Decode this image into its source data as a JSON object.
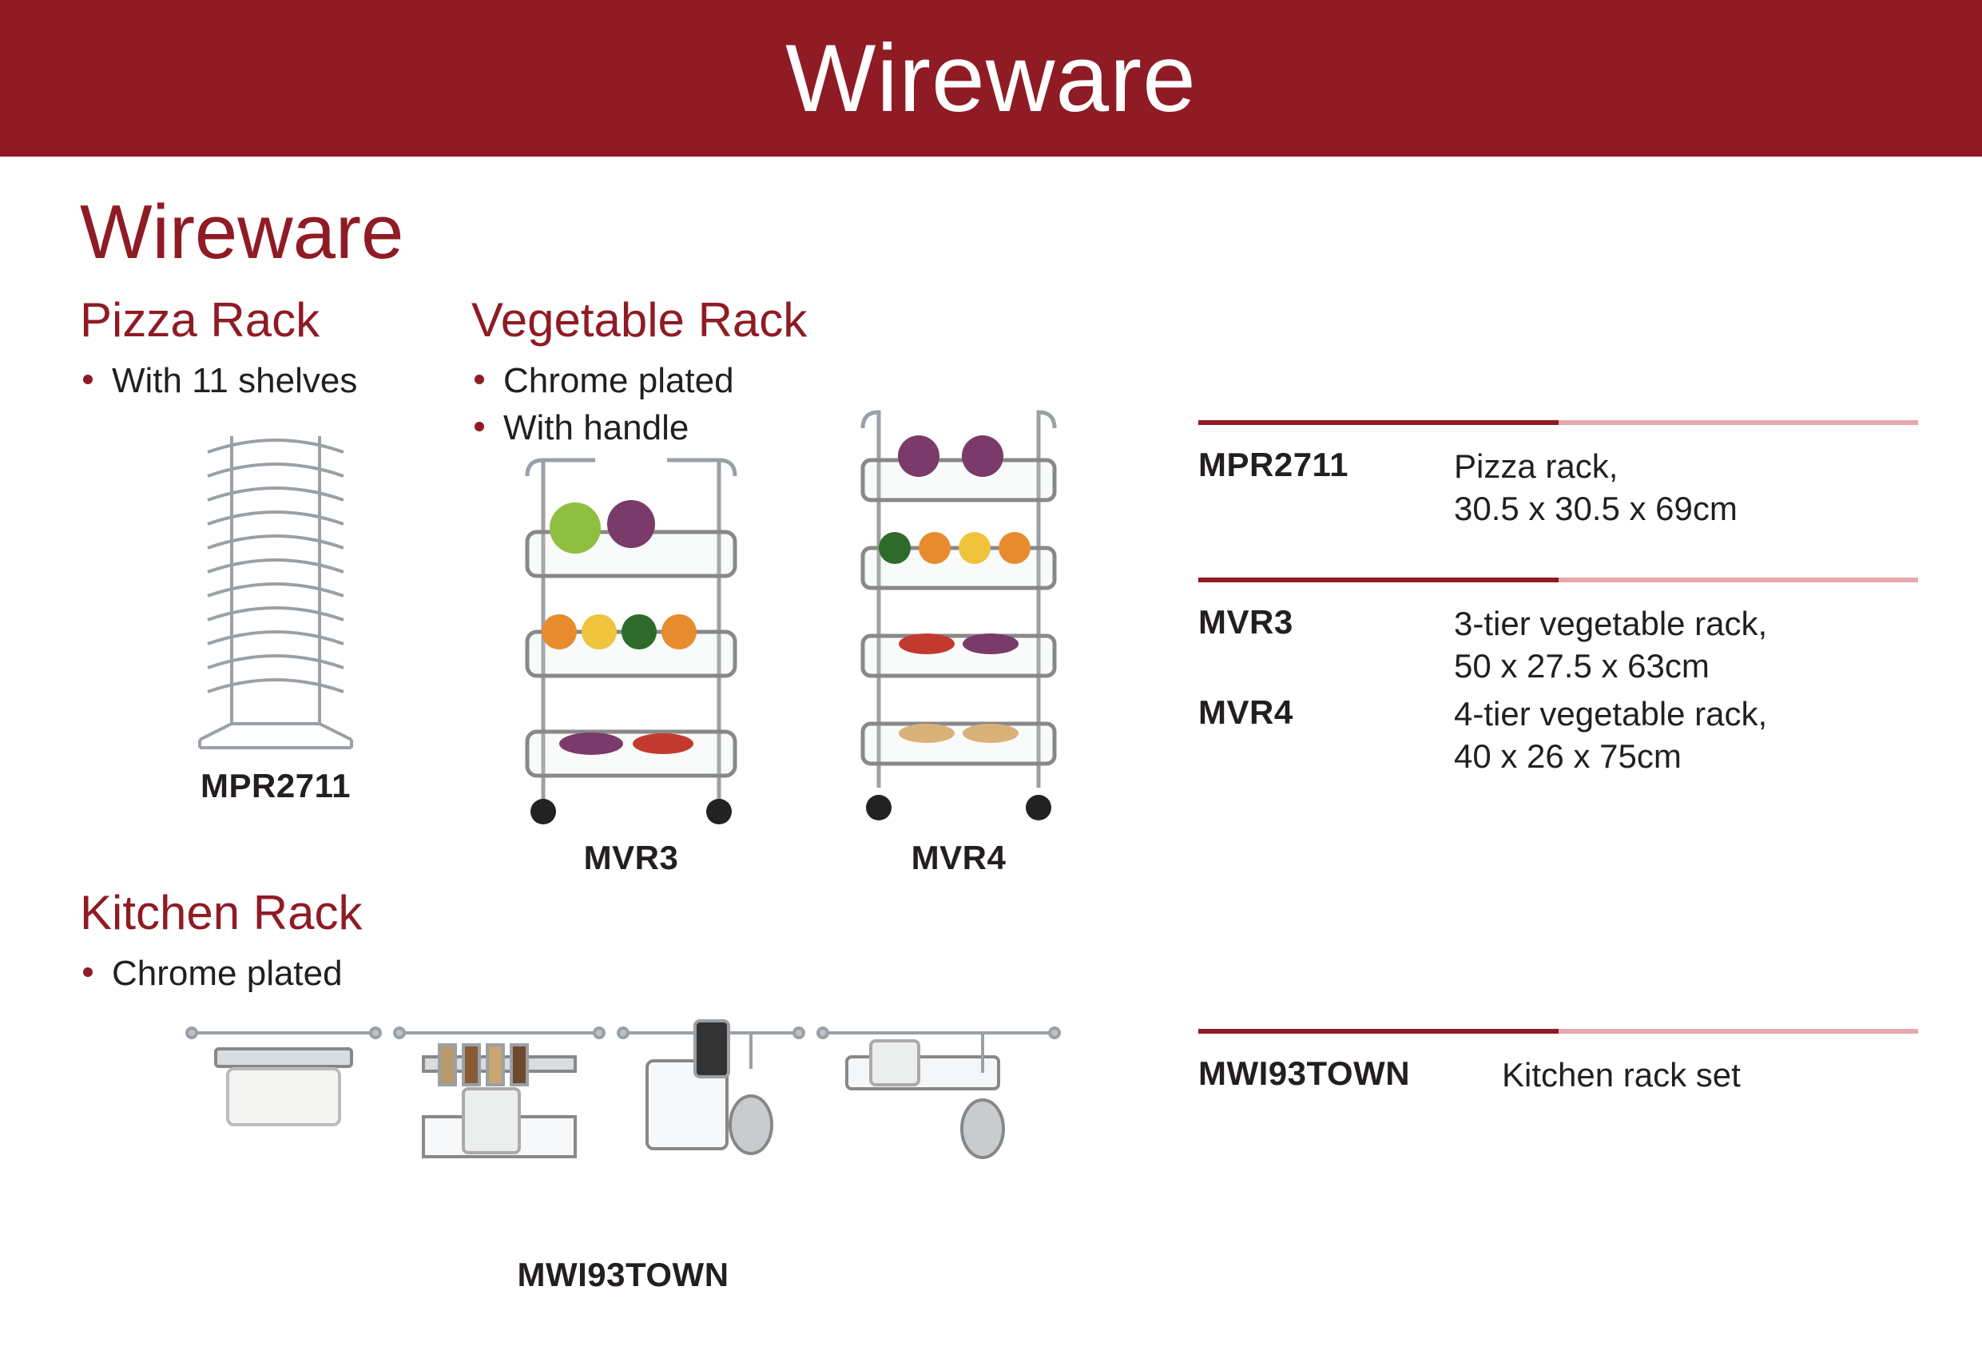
{
  "colors": {
    "brand_red": "#8f1b24",
    "brand_red_light": "#e6a8ad",
    "banner_text": "#ffffff",
    "text": "#231f20",
    "bullet": "#8f1b24"
  },
  "banner": {
    "title": "Wireware"
  },
  "section_title": "Wireware",
  "products": {
    "pizza": {
      "title": "Pizza Rack",
      "bullets": [
        "With 11 shelves"
      ],
      "image_label": "MPR2711"
    },
    "veg": {
      "title": "Vegetable Rack",
      "bullets": [
        "Chrome plated",
        "With handle"
      ],
      "image_labels": [
        "MVR3",
        "MVR4"
      ]
    },
    "kitchen": {
      "title": "Kitchen Rack",
      "bullets": [
        "Chrome plated"
      ],
      "image_label": "MWI93TOWN"
    }
  },
  "specs": [
    {
      "rows": [
        {
          "code": "MPR2711",
          "desc": "Pizza rack,\n30.5 x 30.5 x 69cm"
        }
      ]
    },
    {
      "rows": [
        {
          "code": "MVR3",
          "desc": "3-tier vegetable rack,\n50 x 27.5 x 63cm"
        },
        {
          "code": "MVR4",
          "desc": "4-tier vegetable rack,\n40 x 26 x 75cm"
        }
      ]
    },
    {
      "rows": [
        {
          "code": "MWI93TOWN",
          "desc": "Kitchen rack set"
        }
      ]
    }
  ]
}
